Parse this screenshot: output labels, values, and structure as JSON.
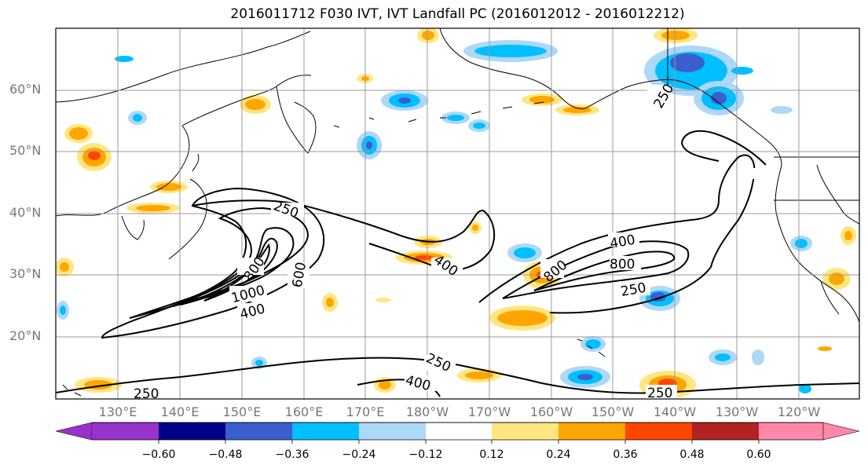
{
  "title": "2016011712 F030 IVT, IVT Landfall PC (2016012012 - 2016012212)",
  "latitude_labels": [
    "60°N",
    "50°N",
    "40°N",
    "30°N",
    "20°N"
  ],
  "longitude_labels": [
    "130°E",
    "140°E",
    "150°E",
    "160°E",
    "170°E",
    "180°W",
    "170°W",
    "160°W",
    "150°W",
    "140°W",
    "130°W",
    "120°W"
  ],
  "colorbar": {
    "tick_labels": [
      "−0.60",
      "−0.48",
      "−0.36",
      "−0.24",
      "−0.12",
      "0.12",
      "0.24",
      "0.36",
      "0.48",
      "0.60"
    ],
    "colors": [
      "#9932cc",
      "#00008b",
      "#3a5fcd",
      "#00bfff",
      "#add8f8",
      "#ffffff",
      "#ffe680",
      "#ffa500",
      "#ff4500",
      "#b22222",
      "#ff88aa"
    ]
  },
  "contour_labels": [
    "250",
    "250",
    "400",
    "600",
    "800",
    "1000",
    "400",
    "250",
    "400",
    "800",
    "800",
    "250",
    "250",
    "400",
    "250",
    "250"
  ],
  "colors": {
    "contour": "#000000",
    "grid": "#999999",
    "positive_low": "#ffe680",
    "positive_mid": "#ffa500",
    "positive_high": "#ff4500",
    "negative_low": "#add8f8",
    "negative_mid": "#00bfff",
    "negative_high": "#3a5fcd"
  }
}
